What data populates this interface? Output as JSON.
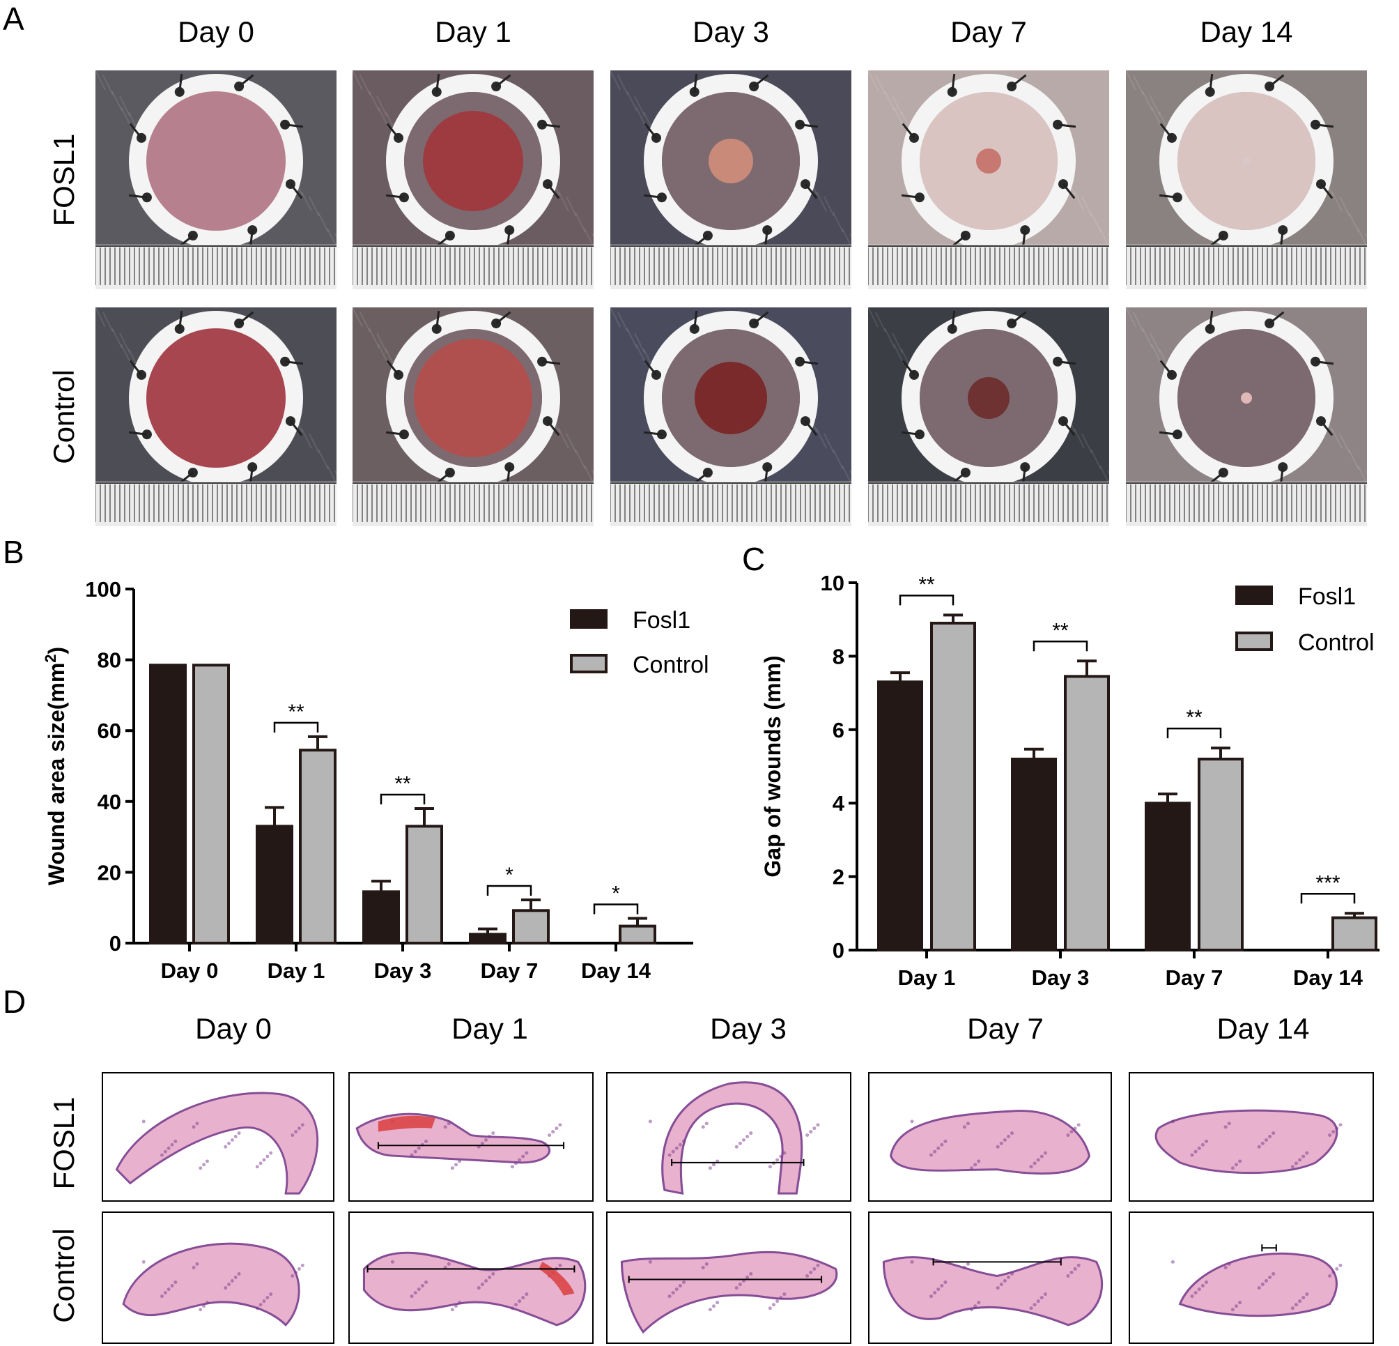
{
  "panels": {
    "a": "A",
    "b": "B",
    "c": "C",
    "d": "D"
  },
  "days_all": [
    "Day 0",
    "Day 1",
    "Day 3",
    "Day 7",
    "Day 14"
  ],
  "rows_photo": [
    "FOSL1",
    "Control"
  ],
  "rows_histo": [
    "FOSL1",
    "Control"
  ],
  "colors": {
    "fosl1": "#231815",
    "control": "#b5b5b5",
    "histo_pink": "#e6a9c8",
    "histo_purple": "#7a3a8c",
    "histo_red": "#d94040"
  },
  "chart_data": [
    {
      "type": "bar",
      "ylabel": "Wound area size(mm",
      "ylabel_sup": "2",
      "ylabel_close": ")",
      "ylim": [
        0,
        100
      ],
      "yticks": [
        "0",
        "20",
        "40",
        "60",
        "80",
        "100"
      ],
      "categories": [
        "Day 0",
        "Day 1",
        "Day 3",
        "Day 7",
        "Day 14"
      ],
      "series": [
        {
          "name": "Fosl1",
          "values": [
            78.5,
            33,
            14.5,
            2.5,
            0
          ],
          "errors": [
            0,
            5.3,
            3,
            1.5,
            0
          ]
        },
        {
          "name": "Control",
          "values": [
            78.5,
            54.5,
            33,
            9.2,
            4.8
          ],
          "errors": [
            0,
            3.8,
            5,
            3,
            2.2
          ]
        }
      ],
      "significance": [
        "",
        "**",
        "**",
        "*",
        "*"
      ],
      "legend": "top-right"
    },
    {
      "type": "bar",
      "ylabel": "Gap of wounds (mm)",
      "ylim": [
        0,
        10
      ],
      "yticks": [
        "0",
        "2",
        "4",
        "6",
        "8",
        "10"
      ],
      "categories": [
        "Day 1",
        "Day 3",
        "Day 7",
        "Day 14"
      ],
      "series": [
        {
          "name": "Fosl1",
          "values": [
            7.3,
            5.2,
            4.0,
            0
          ],
          "errors": [
            0.25,
            0.27,
            0.25,
            0
          ]
        },
        {
          "name": "Control",
          "values": [
            8.9,
            7.45,
            5.2,
            0.88
          ],
          "errors": [
            0.22,
            0.42,
            0.3,
            0.12
          ]
        }
      ],
      "significance": [
        "**",
        "**",
        "**",
        "***"
      ],
      "legend": "top-right"
    }
  ]
}
